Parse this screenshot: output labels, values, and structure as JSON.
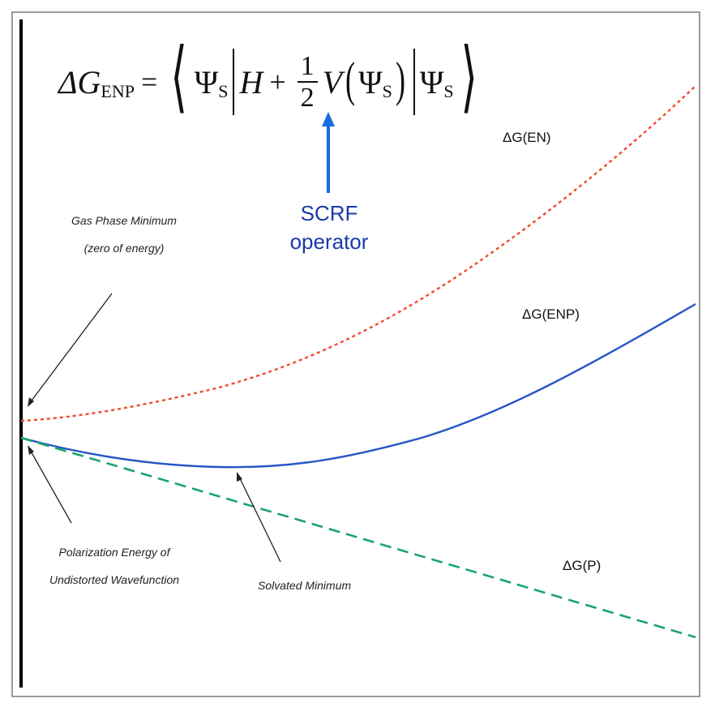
{
  "formula": {
    "lhs_symbol": "ΔG",
    "lhs_sub": "ENP",
    "equals": "=",
    "psi": "Ψ",
    "psi_sub": "S",
    "H": "H",
    "plus": "+",
    "frac_num": "1",
    "frac_den": "2",
    "V": "V"
  },
  "operator_label": {
    "line1": "SCRF",
    "line2": "operator"
  },
  "curves": [
    {
      "label": "ΔG(EN)",
      "color": "#f04a2a",
      "style": "dotted"
    },
    {
      "label": "ΔG(ENP)",
      "color": "#2456c8",
      "style": "solid"
    },
    {
      "label": "ΔG(P)",
      "color": "#1aa56a",
      "style": "dashed"
    }
  ],
  "annotations": {
    "gas_phase_line1": "Gas Phase Minimum",
    "gas_phase_line2": "(zero of energy)",
    "polarization_line1": "Polarization Energy of",
    "polarization_line2": "Undistorted Wavefunction",
    "solvated": "Solvated Minimum"
  },
  "colors": {
    "arrow_blue": "#1a6ae0",
    "operator_text": "#1a3aa8",
    "axis": "#000000"
  }
}
